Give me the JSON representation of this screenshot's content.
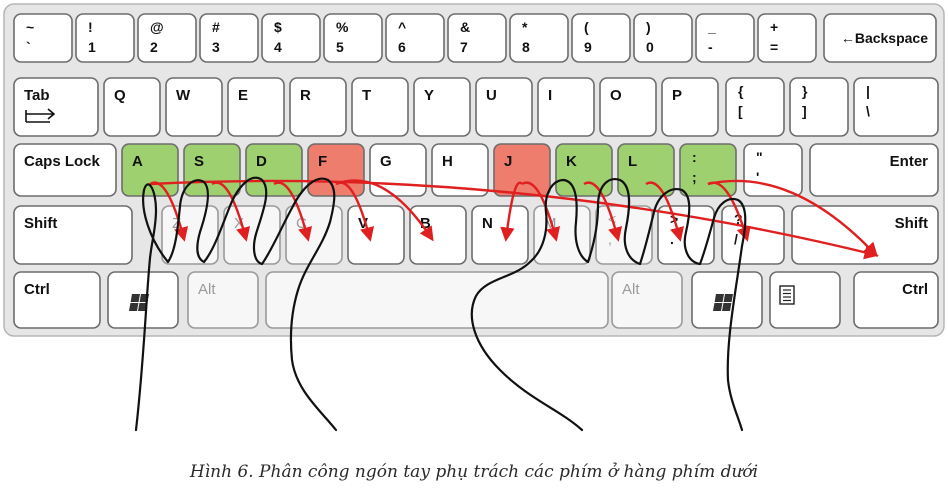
{
  "caption": "Hình 6. Phân công ngón tay phụ trách  các phím ở hàng phím dưới",
  "colors": {
    "home_green": "#9fd06f",
    "anchor_red": "#ee7d6d",
    "arrow": "#e02020"
  },
  "rows": [
    {
      "row": "number",
      "keys": [
        {
          "top": "~",
          "bottom": "`"
        },
        {
          "top": "!",
          "bottom": "1"
        },
        {
          "top": "@",
          "bottom": "2"
        },
        {
          "top": "#",
          "bottom": "3"
        },
        {
          "top": "$",
          "bottom": "4"
        },
        {
          "top": "%",
          "bottom": "5"
        },
        {
          "top": "^",
          "bottom": "6"
        },
        {
          "top": "&",
          "bottom": "7"
        },
        {
          "top": "*",
          "bottom": "8"
        },
        {
          "top": "(",
          "bottom": "9"
        },
        {
          "top": ")",
          "bottom": "0"
        },
        {
          "top": "_",
          "bottom": "-"
        },
        {
          "top": "+",
          "bottom": "="
        },
        {
          "label": "←Backspace"
        }
      ]
    },
    {
      "row": "top",
      "keys": [
        {
          "label": "Tab",
          "icon": "tab-arrows-icon"
        },
        {
          "label": "Q"
        },
        {
          "label": "W"
        },
        {
          "label": "E"
        },
        {
          "label": "R"
        },
        {
          "label": "T"
        },
        {
          "label": "Y"
        },
        {
          "label": "U"
        },
        {
          "label": "I"
        },
        {
          "label": "O"
        },
        {
          "label": "P"
        },
        {
          "top": "{",
          "bottom": "["
        },
        {
          "top": "}",
          "bottom": "]"
        },
        {
          "top": "|",
          "bottom": "\\"
        }
      ]
    },
    {
      "row": "home",
      "keys": [
        {
          "label": "Caps Lock"
        },
        {
          "label": "A",
          "color": "green"
        },
        {
          "label": "S",
          "color": "green"
        },
        {
          "label": "D",
          "color": "green"
        },
        {
          "label": "F",
          "color": "red"
        },
        {
          "label": "G"
        },
        {
          "label": "H"
        },
        {
          "label": "J",
          "color": "red"
        },
        {
          "label": "K",
          "color": "green"
        },
        {
          "label": "L",
          "color": "green"
        },
        {
          "top": ":",
          "bottom": ";",
          "color": "green"
        },
        {
          "top": "\"",
          "bottom": "'"
        },
        {
          "label": "Enter"
        }
      ]
    },
    {
      "row": "bottom",
      "keys": [
        {
          "label": "Shift"
        },
        {
          "label": "Z"
        },
        {
          "label": "X"
        },
        {
          "label": "C"
        },
        {
          "label": "V"
        },
        {
          "label": "B"
        },
        {
          "label": "N"
        },
        {
          "label": "M"
        },
        {
          "top": "<",
          "bottom": ","
        },
        {
          "top": ">",
          "bottom": "."
        },
        {
          "top": "?",
          "bottom": "/"
        },
        {
          "label": "Shift"
        }
      ]
    },
    {
      "row": "space",
      "keys": [
        {
          "label": "Ctrl"
        },
        {
          "icon": "windows-logo-icon"
        },
        {
          "label": "Alt"
        },
        {
          "label": ""
        },
        {
          "label": "Alt"
        },
        {
          "icon": "windows-logo-icon"
        },
        {
          "icon": "menu-key-icon"
        },
        {
          "label": "Ctrl"
        }
      ]
    }
  ],
  "finger_assignments": [
    {
      "from": "A",
      "to": "Shift"
    },
    {
      "from": "A",
      "to": "Z"
    },
    {
      "from": "S",
      "to": "X"
    },
    {
      "from": "D",
      "to": "C"
    },
    {
      "from": "F",
      "to": "V"
    },
    {
      "from": "F",
      "to": "B"
    },
    {
      "from": "J",
      "to": "N"
    },
    {
      "from": "J",
      "to": "M"
    },
    {
      "from": "K",
      "to": "<,"
    },
    {
      "from": "L",
      "to": ">."
    },
    {
      "from": ":;",
      "to": "?/"
    },
    {
      "from": ":;",
      "to": "Shift"
    }
  ]
}
